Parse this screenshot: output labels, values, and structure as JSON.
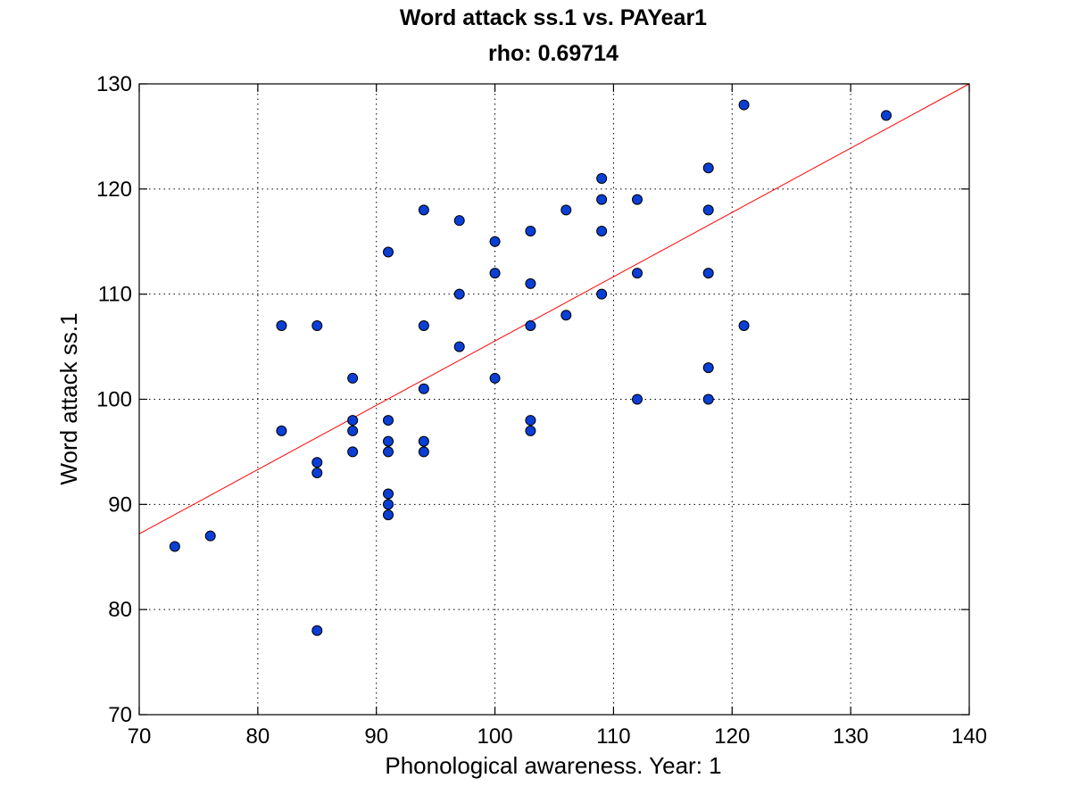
{
  "chart_data": {
    "type": "scatter",
    "title": "Word attack ss.1 vs. PAYear1",
    "subtitle": "rho: 0.69714",
    "xlabel": "Phonological awareness. Year: 1",
    "ylabel": "Word attack ss.1",
    "xlim": [
      70,
      140
    ],
    "ylim": [
      70,
      130
    ],
    "xticks": [
      70,
      80,
      90,
      100,
      110,
      120,
      130,
      140
    ],
    "yticks": [
      70,
      80,
      90,
      100,
      110,
      120,
      130
    ],
    "grid": true,
    "marker_color": "#0a3fd6",
    "marker_edge": "#000000",
    "fit_color": "#ff0000",
    "fit_line": {
      "x": [
        70,
        140
      ],
      "y": [
        87.2,
        130
      ]
    },
    "points": [
      [
        73,
        86
      ],
      [
        76,
        87
      ],
      [
        82,
        107
      ],
      [
        82,
        97
      ],
      [
        85,
        107
      ],
      [
        85,
        94
      ],
      [
        85,
        93
      ],
      [
        85,
        78
      ],
      [
        88,
        102
      ],
      [
        88,
        98
      ],
      [
        88,
        97
      ],
      [
        88,
        95
      ],
      [
        91,
        114
      ],
      [
        91,
        98
      ],
      [
        91,
        96
      ],
      [
        91,
        95
      ],
      [
        91,
        91
      ],
      [
        91,
        90
      ],
      [
        91,
        89
      ],
      [
        94,
        118
      ],
      [
        94,
        107
      ],
      [
        94,
        101
      ],
      [
        94,
        96
      ],
      [
        94,
        95
      ],
      [
        97,
        117
      ],
      [
        97,
        110
      ],
      [
        97,
        105
      ],
      [
        100,
        115
      ],
      [
        100,
        112
      ],
      [
        100,
        102
      ],
      [
        103,
        116
      ],
      [
        103,
        111
      ],
      [
        103,
        107
      ],
      [
        103,
        98
      ],
      [
        103,
        97
      ],
      [
        106,
        118
      ],
      [
        106,
        108
      ],
      [
        109,
        121
      ],
      [
        109,
        119
      ],
      [
        109,
        116
      ],
      [
        109,
        110
      ],
      [
        112,
        119
      ],
      [
        112,
        112
      ],
      [
        112,
        100
      ],
      [
        118,
        122
      ],
      [
        118,
        118
      ],
      [
        118,
        112
      ],
      [
        118,
        103
      ],
      [
        118,
        100
      ],
      [
        121,
        128
      ],
      [
        121,
        107
      ],
      [
        133,
        127
      ]
    ]
  }
}
